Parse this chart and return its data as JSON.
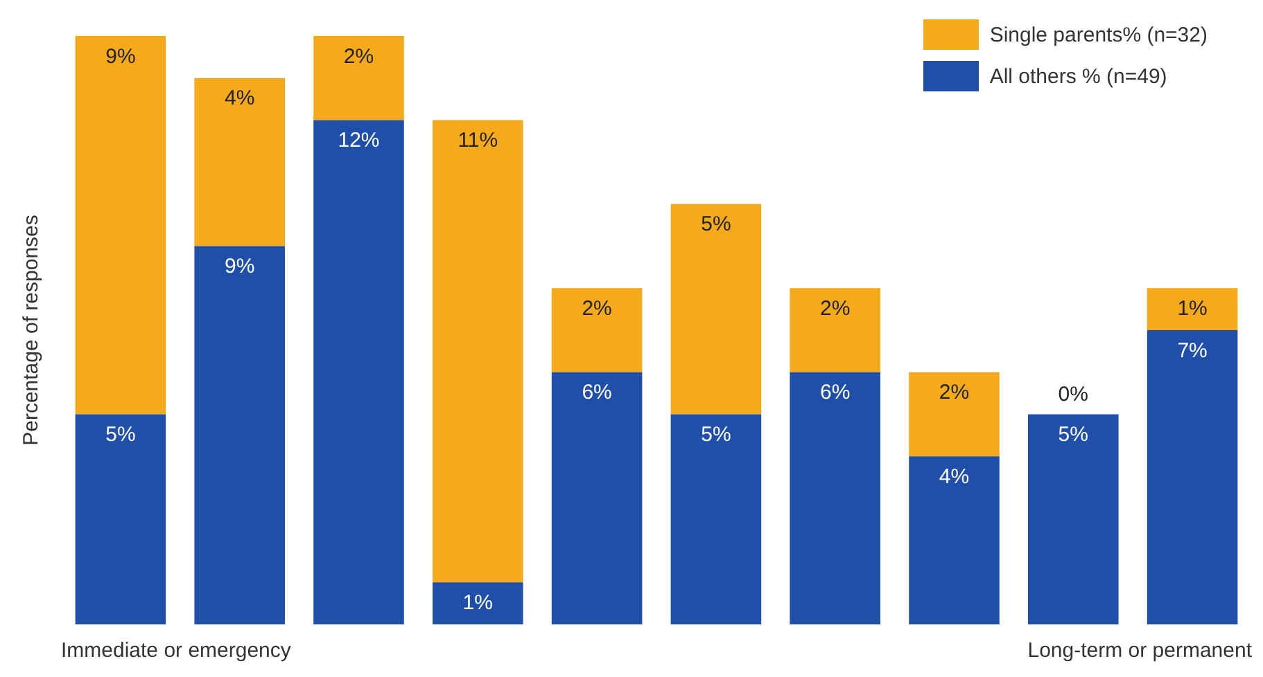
{
  "chart_data": {
    "type": "bar",
    "stacked": true,
    "ylabel": "Percentage of responses",
    "categories": [
      null,
      null,
      null,
      null,
      null,
      null,
      null,
      null,
      null,
      null
    ],
    "ylim": [
      0,
      14
    ],
    "series": [
      {
        "name": "All others % (n=49)",
        "color": "#1f4fa8",
        "values": [
          5,
          9,
          12,
          1,
          6,
          5,
          6,
          4,
          5,
          7
        ],
        "value_labels": [
          "5%",
          "9%",
          "12%",
          "1%",
          "6%",
          "5%",
          "6%",
          "4%",
          "5%",
          "7%"
        ]
      },
      {
        "name": "Single parents% (n=32)",
        "color": "#f5aa1c",
        "values": [
          9,
          4,
          2,
          11,
          2,
          5,
          2,
          2,
          0,
          1
        ],
        "value_labels": [
          "9%",
          "4%",
          "2%",
          "11%",
          "2%",
          "5%",
          "2%",
          "2%",
          "0%",
          "1%"
        ]
      }
    ],
    "legend": "top right",
    "annotations": [
      "Immediate or emergency",
      "Long-term or permanent"
    ]
  }
}
